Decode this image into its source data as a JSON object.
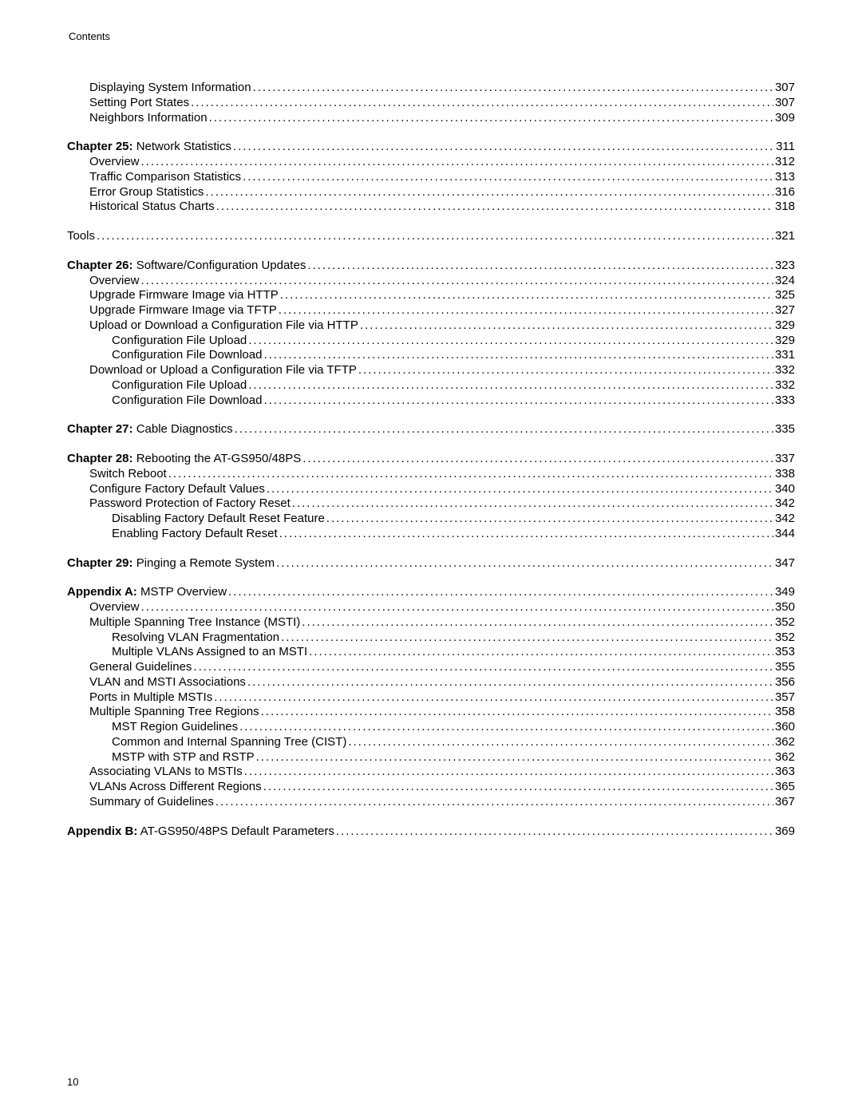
{
  "header": "Contents",
  "page_number": "10",
  "dots": "............................................................................................................................................................................................................................",
  "groups": [
    {
      "items": [
        {
          "indent": 1,
          "text": "Displaying System Information",
          "page": "307"
        },
        {
          "indent": 1,
          "text": "Setting Port States ",
          "page": "307"
        },
        {
          "indent": 1,
          "text": "Neighbors Information ",
          "page": "309"
        }
      ]
    },
    {
      "items": [
        {
          "indent": 0,
          "bold": "Chapter 25:",
          "rest": " Network Statistics ",
          "page": "311"
        },
        {
          "indent": 1,
          "text": "Overview",
          "page": "312"
        },
        {
          "indent": 1,
          "text": "Traffic Comparison Statistics",
          "page": "313"
        },
        {
          "indent": 1,
          "text": "Error Group Statistics ",
          "page": "316"
        },
        {
          "indent": 1,
          "text": "Historical Status Charts ",
          "page": "318"
        }
      ]
    },
    {
      "items": [
        {
          "indent": 0,
          "text": "Tools ",
          "page": "321"
        }
      ]
    },
    {
      "items": [
        {
          "indent": 0,
          "bold": "Chapter 26:",
          "rest": " Software/Configuration Updates ",
          "page": "323"
        },
        {
          "indent": 1,
          "text": "Overview",
          "page": "324"
        },
        {
          "indent": 1,
          "text": "Upgrade Firmware Image via HTTP",
          "page": "325"
        },
        {
          "indent": 1,
          "text": "Upgrade Firmware Image via TFTP ",
          "page": "327"
        },
        {
          "indent": 1,
          "text": "Upload or Download a Configuration File via HTTP",
          "page": "329"
        },
        {
          "indent": 2,
          "text": "Configuration File Upload",
          "page": "329"
        },
        {
          "indent": 2,
          "text": "Configuration File Download",
          "page": "331"
        },
        {
          "indent": 1,
          "text": "Download or Upload a Configuration File via TFTP ",
          "page": "332"
        },
        {
          "indent": 2,
          "text": "Configuration File Upload",
          "page": "332"
        },
        {
          "indent": 2,
          "text": "Configuration File Download",
          "page": "333"
        }
      ]
    },
    {
      "items": [
        {
          "indent": 0,
          "bold": "Chapter 27:",
          "rest": " Cable Diagnostics ",
          "page": "335"
        }
      ]
    },
    {
      "items": [
        {
          "indent": 0,
          "bold": "Chapter 28:",
          "rest": " Rebooting the AT-GS950/48PS ",
          "page": "337"
        },
        {
          "indent": 1,
          "text": "Switch Reboot ",
          "page": "338"
        },
        {
          "indent": 1,
          "text": "Configure Factory Default Values",
          "page": "340"
        },
        {
          "indent": 1,
          "text": "Password Protection of Factory Reset ",
          "page": "342"
        },
        {
          "indent": 2,
          "text": "Disabling Factory Default Reset Feature ",
          "page": "342"
        },
        {
          "indent": 2,
          "text": "Enabling Factory Default Reset ",
          "page": "344"
        }
      ]
    },
    {
      "items": [
        {
          "indent": 0,
          "bold": "Chapter 29:",
          "rest": " Pinging a Remote System ",
          "page": "347"
        }
      ]
    },
    {
      "items": [
        {
          "indent": 0,
          "bold": "Appendix A:",
          "rest": " MSTP Overview ",
          "page": "349"
        },
        {
          "indent": 1,
          "text": "Overview",
          "page": "350"
        },
        {
          "indent": 1,
          "text": "Multiple Spanning Tree Instance (MSTI)",
          "page": "352"
        },
        {
          "indent": 2,
          "text": "Resolving VLAN Fragmentation",
          "page": "352"
        },
        {
          "indent": 2,
          "text": "Multiple VLANs Assigned to an MSTI ",
          "page": "353"
        },
        {
          "indent": 1,
          "text": "General Guidelines",
          "page": "355"
        },
        {
          "indent": 1,
          "text": "VLAN and MSTI Associations ",
          "page": "356"
        },
        {
          "indent": 1,
          "text": "Ports in Multiple MSTIs",
          "page": "357"
        },
        {
          "indent": 1,
          "text": "Multiple Spanning Tree Regions ",
          "page": "358"
        },
        {
          "indent": 2,
          "text": "MST Region Guidelines ",
          "page": "360"
        },
        {
          "indent": 2,
          "text": "Common and Internal Spanning Tree (CIST) ",
          "page": "362"
        },
        {
          "indent": 2,
          "text": "MSTP with STP and RSTP ",
          "page": "362"
        },
        {
          "indent": 1,
          "text": "Associating VLANs to MSTIs",
          "page": "363"
        },
        {
          "indent": 1,
          "text": "VLANs Across Different Regions",
          "page": "365"
        },
        {
          "indent": 1,
          "text": "Summary of Guidelines ",
          "page": "367"
        }
      ]
    },
    {
      "items": [
        {
          "indent": 0,
          "bold": "Appendix B:",
          "rest": " AT-GS950/48PS Default Parameters ",
          "page": "369"
        }
      ]
    }
  ]
}
